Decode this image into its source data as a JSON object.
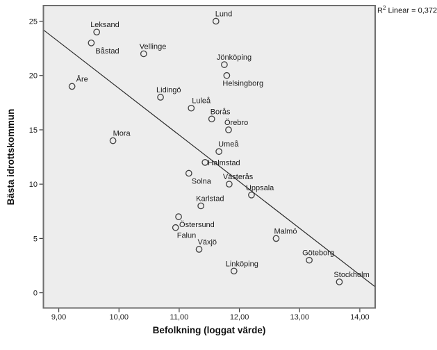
{
  "colors": {
    "plot_background": "#ededed",
    "frame_border": "#6e6e6e",
    "marker_stroke": "#3f3f3f",
    "regression_line": "#2e2e2e",
    "tick_color": "#3f3f3f",
    "label_text": "#1c1c1c"
  },
  "annotation": {
    "r2_base": "R",
    "r2_sup": "2",
    "r2_rest": " Linear = 0,372"
  },
  "chart_data": {
    "type": "scatter",
    "title": "",
    "xlabel": "Befolkning (loggat värde)",
    "ylabel": "Bästa idrottskommun",
    "xlim": [
      8.745,
      14.255
    ],
    "ylim": [
      -1.4,
      26.44
    ],
    "grid": false,
    "legend": null,
    "x_ticks": {
      "values": [
        9,
        10,
        11,
        12,
        13,
        14
      ],
      "labels": [
        "9,00",
        "10,00",
        "11,00",
        "12,00",
        "13,00",
        "14,00"
      ]
    },
    "y_ticks": {
      "values": [
        0,
        5,
        10,
        15,
        20,
        25
      ],
      "labels": [
        "0",
        "5",
        "10",
        "15",
        "20",
        "25"
      ]
    },
    "regression_line": {
      "x1": 8.745,
      "y1": 24.2,
      "x2": 14.255,
      "y2": 0.55,
      "r2": 0.372
    },
    "points": [
      {
        "label": "Lund",
        "x": 11.61,
        "y": 25,
        "label_pos": "above",
        "label_dx": -1
      },
      {
        "label": "Leksand",
        "x": 9.63,
        "y": 24,
        "label_pos": "above",
        "label_dx": -9
      },
      {
        "label": "Båstad",
        "x": 9.54,
        "y": 23,
        "label_pos": "below",
        "label_dx": 6
      },
      {
        "label": "Vellinge",
        "x": 10.41,
        "y": 22,
        "label_pos": "above",
        "label_dx": -6
      },
      {
        "label": "Jönköping",
        "x": 11.75,
        "y": 21,
        "label_pos": "above",
        "label_dx": -11
      },
      {
        "label": "Helsingborg",
        "x": 11.79,
        "y": 20,
        "label_pos": "below",
        "label_dx": -6
      },
      {
        "label": "Åre",
        "x": 9.22,
        "y": 19,
        "label_pos": "above",
        "label_dx": 6
      },
      {
        "label": "Lidingö",
        "x": 10.69,
        "y": 18,
        "label_pos": "above",
        "label_dx": -6
      },
      {
        "label": "Luleå",
        "x": 11.2,
        "y": 17,
        "label_pos": "above",
        "label_dx": 1
      },
      {
        "label": "Borås",
        "x": 11.54,
        "y": 16,
        "label_pos": "above",
        "label_dx": -2
      },
      {
        "label": "Örebro",
        "x": 11.82,
        "y": 15,
        "label_pos": "above",
        "label_dx": -6
      },
      {
        "label": "Mora",
        "x": 9.9,
        "y": 14,
        "label_pos": "above",
        "label_dx": 0
      },
      {
        "label": "Umeå",
        "x": 11.66,
        "y": 13,
        "label_pos": "above",
        "label_dx": -1
      },
      {
        "label": "Halmstad",
        "x": 11.43,
        "y": 12,
        "label_pos": "right",
        "label_dx": 4
      },
      {
        "label": "Solna",
        "x": 11.16,
        "y": 11,
        "label_pos": "below",
        "label_dx": 4
      },
      {
        "label": "Västerås",
        "x": 11.83,
        "y": 10,
        "label_pos": "above",
        "label_dx": -9
      },
      {
        "label": "Uppsala",
        "x": 12.2,
        "y": 9,
        "label_pos": "above",
        "label_dx": -8
      },
      {
        "label": "Karlstad",
        "x": 11.36,
        "y": 8,
        "label_pos": "above",
        "label_dx": -7
      },
      {
        "label": "Östersund",
        "x": 10.99,
        "y": 7,
        "label_pos": "below",
        "label_dx": 1
      },
      {
        "label": "Falun",
        "x": 10.94,
        "y": 6,
        "label_pos": "below",
        "label_dx": 2
      },
      {
        "label": "Malmö",
        "x": 12.61,
        "y": 5,
        "label_pos": "above",
        "label_dx": -3
      },
      {
        "label": "Växjö",
        "x": 11.33,
        "y": 4,
        "label_pos": "above",
        "label_dx": -2
      },
      {
        "label": "Göteborg",
        "x": 13.16,
        "y": 3,
        "label_pos": "above",
        "label_dx": -10
      },
      {
        "label": "Linköping",
        "x": 11.91,
        "y": 2,
        "label_pos": "above",
        "label_dx": -12
      },
      {
        "label": "Stockholm",
        "x": 13.66,
        "y": 1,
        "label_pos": "above",
        "label_dx": -8
      }
    ]
  }
}
